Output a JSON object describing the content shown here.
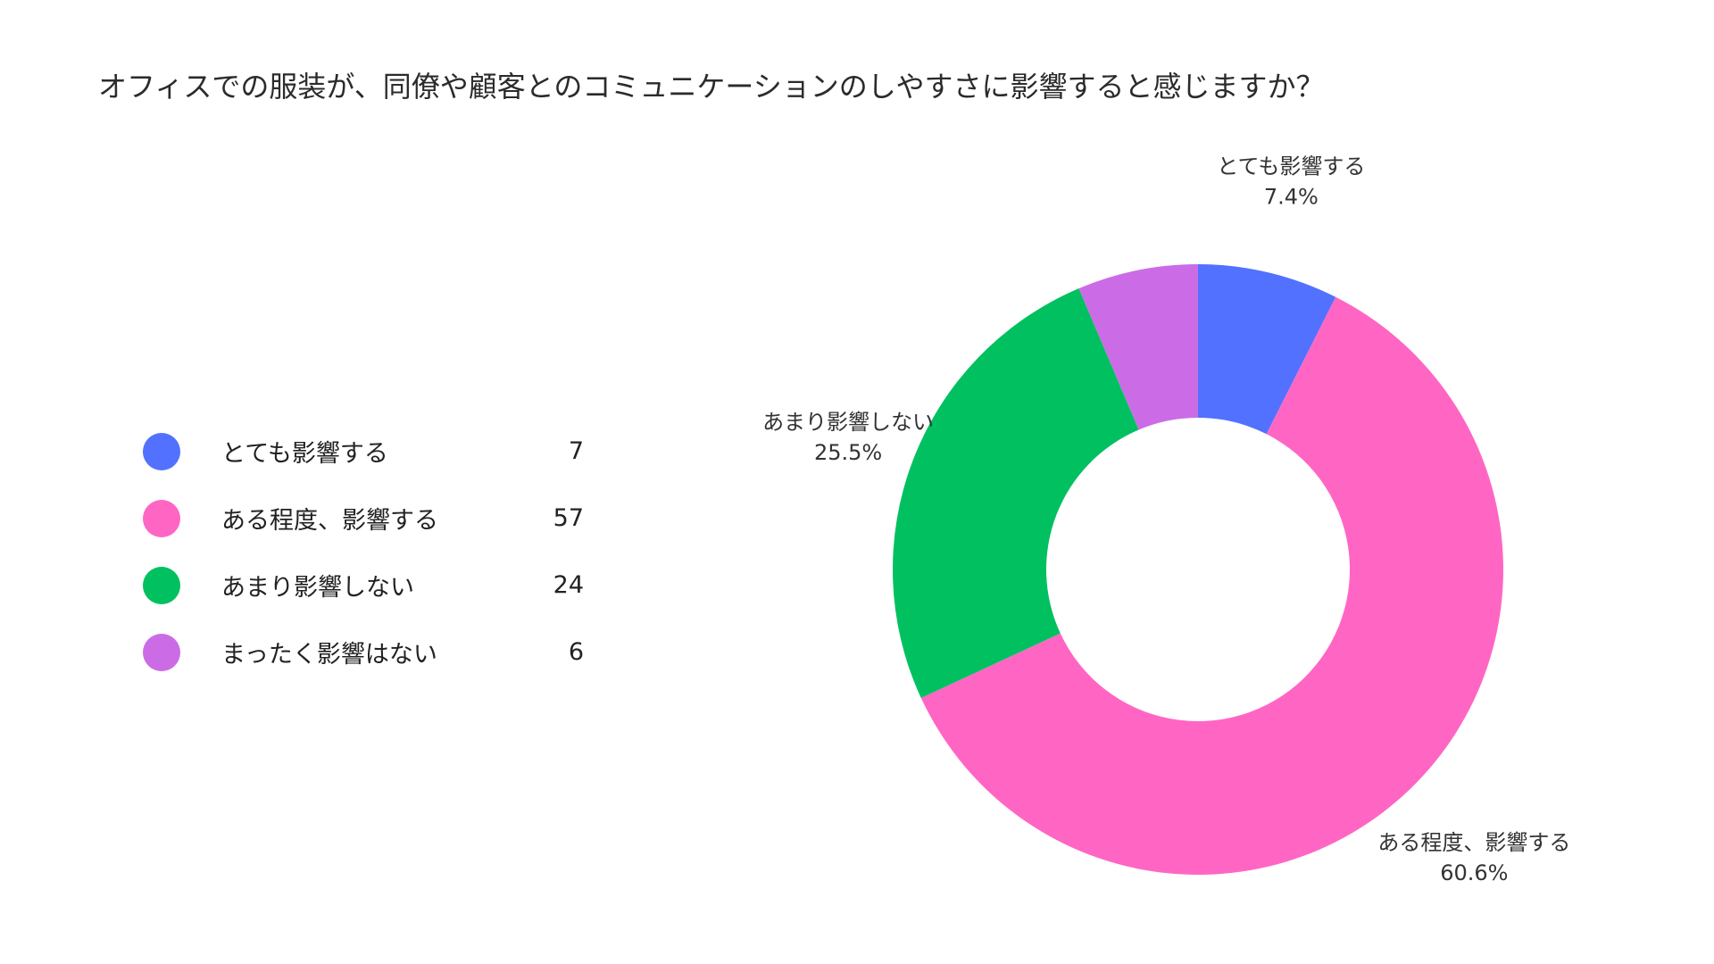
{
  "chart_data": {
    "type": "pie",
    "title": "オフィスでの服装が、同僚や顧客とのコミュニケーションのしやすさに影響すると感じますか？",
    "donut": true,
    "legend_position": "left",
    "categories": [
      "とても影響する",
      "ある程度、影響する",
      "あまり影響しない",
      "まったく影響はない"
    ],
    "values": [
      7,
      57,
      24,
      6
    ],
    "percent_labels": [
      "7.4%",
      "60.6%",
      "25.5%",
      ""
    ],
    "colors": [
      "#5271ff",
      "#ff66c4",
      "#00c060",
      "#cb6ce6"
    ]
  }
}
